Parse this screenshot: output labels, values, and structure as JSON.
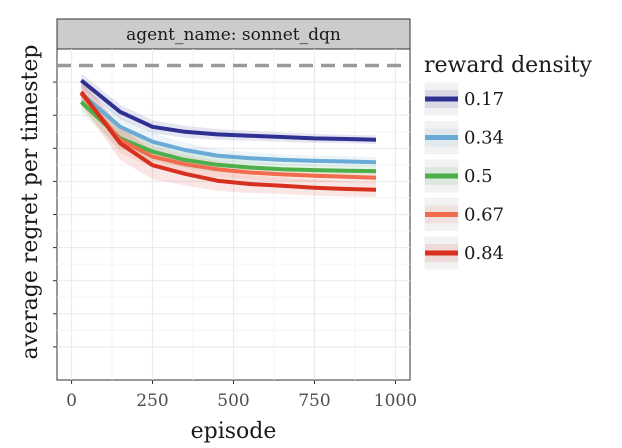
{
  "chart_data": {
    "type": "line",
    "facet_label": "agent_name: sonnet_dqn",
    "xlabel": "episode",
    "ylabel": "average regret per timestep",
    "xlim": [
      -45,
      1045
    ],
    "ylim": [
      0,
      1.0
    ],
    "x_ticks": [
      0,
      250,
      500,
      750,
      1000
    ],
    "x_tick_labels": [
      "0",
      "250",
      "500",
      "750",
      "1000"
    ],
    "y_gridlines": [
      0.1,
      0.2,
      0.3,
      0.4,
      0.5,
      0.6,
      0.7,
      0.8,
      0.9
    ],
    "reference_line": {
      "y": 0.95,
      "style": "dashed",
      "color": "#999999"
    },
    "grid": true,
    "legend_title": "reward density",
    "legend_position": "right",
    "x": [
      30,
      150,
      250,
      350,
      450,
      550,
      650,
      750,
      850,
      940
    ],
    "series": [
      {
        "name": "0.17",
        "color": "#2e3192",
        "values": [
          0.905,
          0.81,
          0.765,
          0.75,
          0.742,
          0.738,
          0.734,
          0.73,
          0.728,
          0.726
        ],
        "band": [
          0.022,
          0.022,
          0.02,
          0.018,
          0.016,
          0.015,
          0.014,
          0.014,
          0.013,
          0.013
        ]
      },
      {
        "name": "0.34",
        "color": "#6aaad6",
        "values": [
          0.865,
          0.765,
          0.72,
          0.695,
          0.678,
          0.67,
          0.665,
          0.662,
          0.66,
          0.658
        ],
        "band": [
          0.03,
          0.03,
          0.026,
          0.022,
          0.02,
          0.018,
          0.017,
          0.016,
          0.016,
          0.015
        ]
      },
      {
        "name": "0.5",
        "color": "#4daf4a",
        "values": [
          0.84,
          0.73,
          0.69,
          0.665,
          0.65,
          0.642,
          0.637,
          0.634,
          0.632,
          0.631
        ],
        "band": [
          0.032,
          0.032,
          0.028,
          0.024,
          0.022,
          0.02,
          0.018,
          0.017,
          0.017,
          0.016
        ]
      },
      {
        "name": "0.67",
        "color": "#f26b4f",
        "values": [
          0.865,
          0.725,
          0.675,
          0.652,
          0.637,
          0.627,
          0.621,
          0.617,
          0.614,
          0.611
        ],
        "band": [
          0.035,
          0.04,
          0.034,
          0.028,
          0.025,
          0.022,
          0.02,
          0.019,
          0.018,
          0.018
        ]
      },
      {
        "name": "0.84",
        "color": "#d7301f",
        "values": [
          0.87,
          0.715,
          0.649,
          0.623,
          0.602,
          0.592,
          0.587,
          0.581,
          0.577,
          0.575
        ],
        "band": [
          0.04,
          0.05,
          0.042,
          0.035,
          0.03,
          0.027,
          0.025,
          0.024,
          0.023,
          0.022
        ]
      }
    ]
  }
}
